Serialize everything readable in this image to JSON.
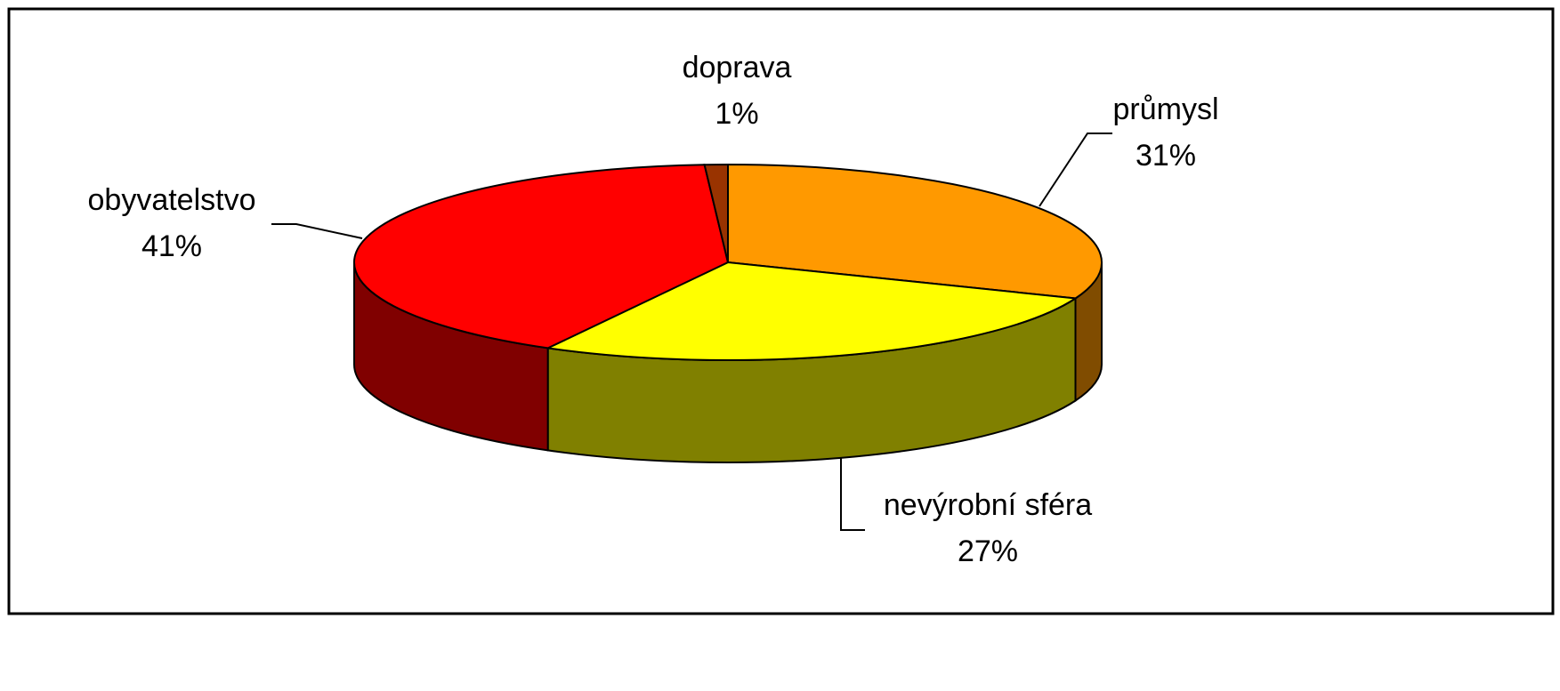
{
  "chart_data": {
    "type": "pie",
    "pie_style": "3d",
    "categories": [
      "průmysl",
      "nevýrobní sféra",
      "obyvatelstvo",
      "doprava"
    ],
    "values": [
      31,
      27,
      41,
      1
    ],
    "value_labels": [
      "31%",
      "27%",
      "41%",
      "1%"
    ],
    "colors": [
      "#FF9900",
      "#FFFF00",
      "#FF0000",
      "#993300"
    ],
    "side_colors": [
      "#804C00",
      "#808000",
      "#800000",
      "#4C1A00"
    ]
  }
}
